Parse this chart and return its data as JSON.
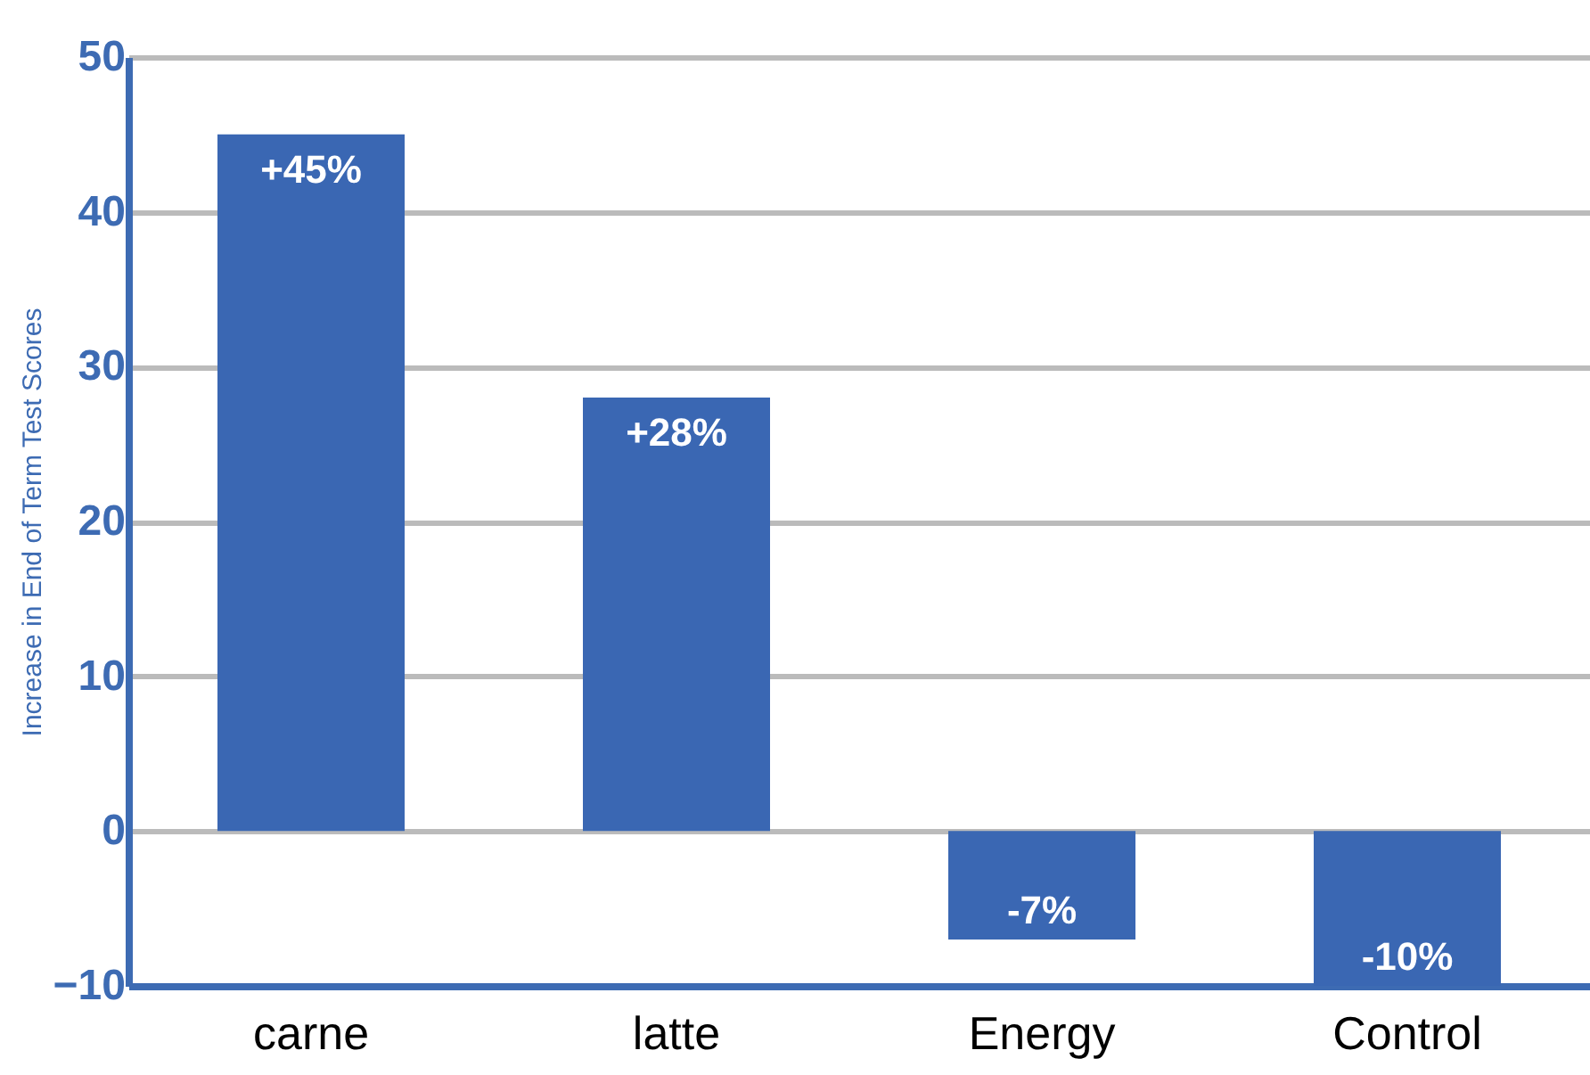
{
  "chart_data": {
    "type": "bar",
    "ylabel": "Increase in End of Term Test Scores",
    "categories": [
      "carne",
      "latte",
      "Energy",
      "Control"
    ],
    "values": [
      45,
      28,
      -7,
      -10
    ],
    "value_labels": [
      "+45%",
      "+28%",
      "-7%",
      "-10%"
    ],
    "color": "#3a67b3",
    "ylim": [
      -10,
      50
    ],
    "yticks": [
      -10,
      0,
      10,
      20,
      30,
      40,
      50
    ],
    "grid": "y"
  }
}
